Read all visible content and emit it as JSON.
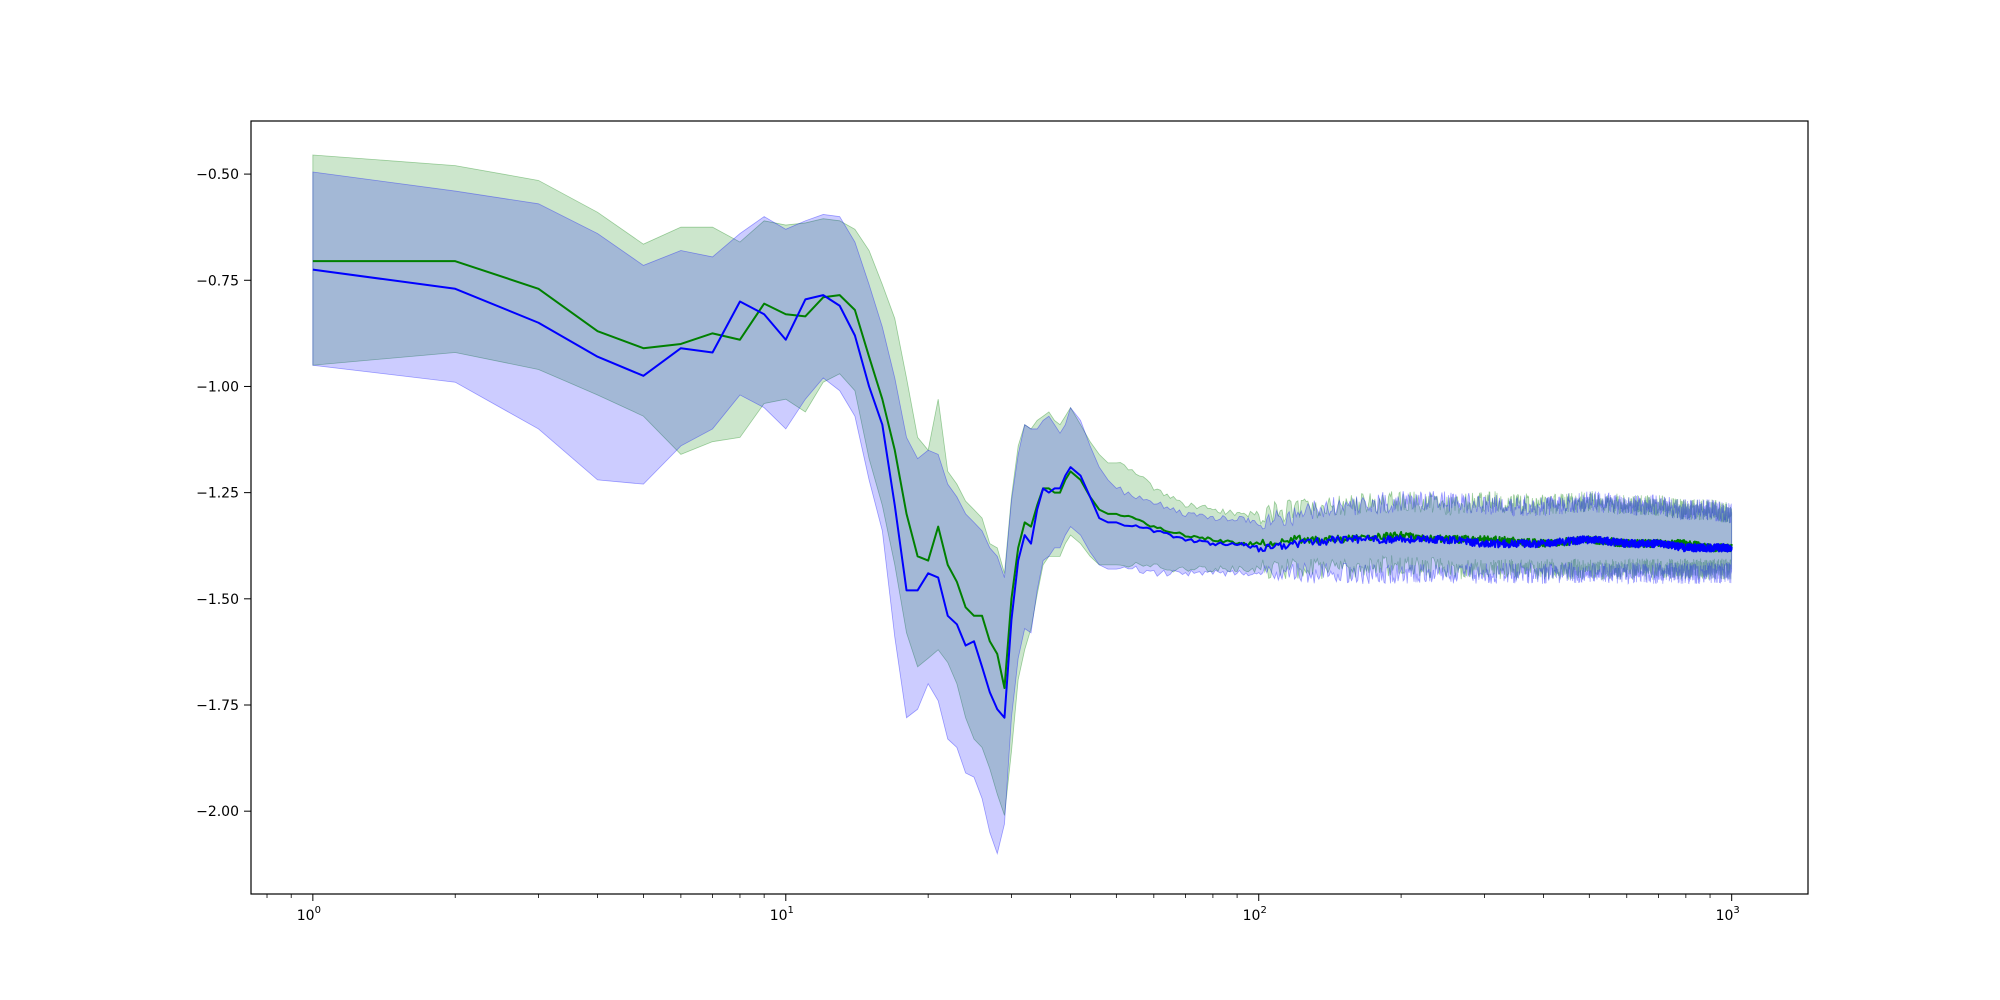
{
  "chart_data": {
    "type": "line",
    "title": "",
    "xlabel": "",
    "ylabel": "",
    "xscale": "log",
    "xlim": [
      0.74,
      1450
    ],
    "ylim": [
      -2.195,
      -0.375
    ],
    "grid": false,
    "legend": "none",
    "x_ticks": [
      {
        "value": 1,
        "base": "10",
        "exp": "0"
      },
      {
        "value": 10,
        "base": "10",
        "exp": "1"
      },
      {
        "value": 100,
        "base": "10",
        "exp": "2"
      },
      {
        "value": 1000,
        "base": "10",
        "exp": "3"
      }
    ],
    "y_ticks": [
      {
        "value": -0.5,
        "label": "−0.50"
      },
      {
        "value": -0.75,
        "label": "−0.75"
      },
      {
        "value": -1.0,
        "label": "−1.00"
      },
      {
        "value": -1.25,
        "label": "−1.25"
      },
      {
        "value": -1.5,
        "label": "−1.50"
      },
      {
        "value": -1.75,
        "label": "−1.75"
      },
      {
        "value": -2.0,
        "label": "−2.00"
      }
    ],
    "series": [
      {
        "color": "#008000",
        "band_color": "#008000",
        "band_opacity": 0.2,
        "x": [
          1,
          2,
          3,
          4,
          5,
          6,
          7,
          8,
          9,
          10,
          11,
          12,
          13,
          14,
          15,
          16,
          17,
          18,
          19,
          20,
          21,
          22,
          23,
          24,
          25,
          26,
          27,
          28,
          29,
          30,
          31,
          32,
          33,
          34,
          35,
          36,
          37,
          38,
          39,
          40,
          42,
          44,
          46,
          48,
          50,
          55,
          60,
          65,
          70,
          80,
          90,
          100,
          120,
          150,
          200,
          250,
          300,
          400,
          500,
          600,
          700,
          800,
          900,
          1000
        ],
        "mean": [
          -0.705,
          -0.705,
          -0.77,
          -0.87,
          -0.91,
          -0.9,
          -0.875,
          -0.89,
          -0.805,
          -0.83,
          -0.835,
          -0.79,
          -0.785,
          -0.82,
          -0.93,
          -1.03,
          -1.15,
          -1.3,
          -1.4,
          -1.41,
          -1.33,
          -1.42,
          -1.46,
          -1.52,
          -1.54,
          -1.54,
          -1.6,
          -1.63,
          -1.71,
          -1.5,
          -1.38,
          -1.32,
          -1.33,
          -1.28,
          -1.24,
          -1.24,
          -1.25,
          -1.25,
          -1.22,
          -1.2,
          -1.22,
          -1.26,
          -1.29,
          -1.3,
          -1.3,
          -1.31,
          -1.33,
          -1.34,
          -1.35,
          -1.36,
          -1.37,
          -1.37,
          -1.36,
          -1.36,
          -1.35,
          -1.36,
          -1.36,
          -1.37,
          -1.36,
          -1.37,
          -1.37,
          -1.37,
          -1.38,
          -1.38
        ],
        "upper": [
          -0.455,
          -0.48,
          -0.515,
          -0.59,
          -0.665,
          -0.625,
          -0.625,
          -0.66,
          -0.61,
          -0.62,
          -0.615,
          -0.605,
          -0.61,
          -0.63,
          -0.68,
          -0.76,
          -0.84,
          -0.98,
          -1.12,
          -1.15,
          -1.03,
          -1.2,
          -1.23,
          -1.27,
          -1.29,
          -1.31,
          -1.37,
          -1.38,
          -1.44,
          -1.26,
          -1.14,
          -1.09,
          -1.1,
          -1.08,
          -1.07,
          -1.06,
          -1.08,
          -1.09,
          -1.07,
          -1.05,
          -1.09,
          -1.13,
          -1.16,
          -1.18,
          -1.18,
          -1.2,
          -1.24,
          -1.26,
          -1.28,
          -1.29,
          -1.3,
          -1.3,
          -1.29,
          -1.28,
          -1.27,
          -1.28,
          -1.27,
          -1.28,
          -1.27,
          -1.28,
          -1.28,
          -1.29,
          -1.29,
          -1.3
        ],
        "lower": [
          -0.95,
          -0.92,
          -0.96,
          -1.02,
          -1.07,
          -1.16,
          -1.13,
          -1.12,
          -1.04,
          -1.03,
          -1.06,
          -0.99,
          -0.97,
          -1.01,
          -1.17,
          -1.28,
          -1.42,
          -1.58,
          -1.66,
          -1.64,
          -1.62,
          -1.65,
          -1.7,
          -1.78,
          -1.83,
          -1.85,
          -1.9,
          -1.96,
          -2.01,
          -1.86,
          -1.69,
          -1.62,
          -1.57,
          -1.49,
          -1.42,
          -1.4,
          -1.4,
          -1.4,
          -1.37,
          -1.35,
          -1.37,
          -1.4,
          -1.42,
          -1.42,
          -1.42,
          -1.42,
          -1.42,
          -1.43,
          -1.43,
          -1.43,
          -1.43,
          -1.43,
          -1.43,
          -1.43,
          -1.42,
          -1.43,
          -1.43,
          -1.43,
          -1.43,
          -1.43,
          -1.43,
          -1.43,
          -1.43,
          -1.43
        ]
      },
      {
        "color": "#0000ff",
        "band_color": "#0000ff",
        "band_opacity": 0.2,
        "x": [
          1,
          2,
          3,
          4,
          5,
          6,
          7,
          8,
          9,
          10,
          11,
          12,
          13,
          14,
          15,
          16,
          17,
          18,
          19,
          20,
          21,
          22,
          23,
          24,
          25,
          26,
          27,
          28,
          29,
          30,
          31,
          32,
          33,
          34,
          35,
          36,
          37,
          38,
          39,
          40,
          42,
          44,
          46,
          48,
          50,
          55,
          60,
          65,
          70,
          80,
          90,
          100,
          120,
          150,
          200,
          250,
          300,
          400,
          500,
          600,
          700,
          800,
          900,
          1000
        ],
        "mean": [
          -0.725,
          -0.77,
          -0.85,
          -0.93,
          -0.975,
          -0.91,
          -0.92,
          -0.8,
          -0.83,
          -0.89,
          -0.795,
          -0.785,
          -0.81,
          -0.88,
          -1.0,
          -1.09,
          -1.28,
          -1.48,
          -1.48,
          -1.44,
          -1.45,
          -1.54,
          -1.56,
          -1.61,
          -1.6,
          -1.66,
          -1.72,
          -1.76,
          -1.78,
          -1.55,
          -1.41,
          -1.35,
          -1.37,
          -1.29,
          -1.24,
          -1.25,
          -1.24,
          -1.24,
          -1.21,
          -1.19,
          -1.21,
          -1.26,
          -1.31,
          -1.32,
          -1.32,
          -1.33,
          -1.34,
          -1.35,
          -1.36,
          -1.37,
          -1.37,
          -1.38,
          -1.37,
          -1.36,
          -1.36,
          -1.36,
          -1.37,
          -1.37,
          -1.36,
          -1.37,
          -1.37,
          -1.38,
          -1.38,
          -1.38
        ],
        "upper": [
          -0.495,
          -0.54,
          -0.57,
          -0.64,
          -0.715,
          -0.68,
          -0.695,
          -0.64,
          -0.6,
          -0.63,
          -0.61,
          -0.595,
          -0.6,
          -0.66,
          -0.76,
          -0.86,
          -0.98,
          -1.12,
          -1.17,
          -1.15,
          -1.16,
          -1.23,
          -1.26,
          -1.3,
          -1.32,
          -1.34,
          -1.38,
          -1.4,
          -1.45,
          -1.27,
          -1.16,
          -1.09,
          -1.1,
          -1.1,
          -1.08,
          -1.07,
          -1.09,
          -1.11,
          -1.09,
          -1.05,
          -1.08,
          -1.14,
          -1.19,
          -1.22,
          -1.24,
          -1.26,
          -1.27,
          -1.29,
          -1.3,
          -1.31,
          -1.31,
          -1.32,
          -1.3,
          -1.28,
          -1.27,
          -1.27,
          -1.28,
          -1.28,
          -1.27,
          -1.28,
          -1.28,
          -1.29,
          -1.29,
          -1.3
        ],
        "lower": [
          -0.95,
          -0.99,
          -1.1,
          -1.22,
          -1.23,
          -1.14,
          -1.1,
          -1.02,
          -1.05,
          -1.1,
          -1.03,
          -0.98,
          -1.01,
          -1.07,
          -1.22,
          -1.34,
          -1.59,
          -1.78,
          -1.76,
          -1.7,
          -1.74,
          -1.83,
          -1.85,
          -1.91,
          -1.92,
          -1.97,
          -2.05,
          -2.1,
          -2.03,
          -1.78,
          -1.64,
          -1.57,
          -1.58,
          -1.48,
          -1.41,
          -1.4,
          -1.38,
          -1.38,
          -1.35,
          -1.33,
          -1.35,
          -1.39,
          -1.42,
          -1.43,
          -1.43,
          -1.43,
          -1.44,
          -1.44,
          -1.44,
          -1.44,
          -1.44,
          -1.44,
          -1.44,
          -1.44,
          -1.44,
          -1.44,
          -1.44,
          -1.44,
          -1.44,
          -1.44,
          -1.44,
          -1.44,
          -1.44,
          -1.44
        ]
      }
    ]
  }
}
